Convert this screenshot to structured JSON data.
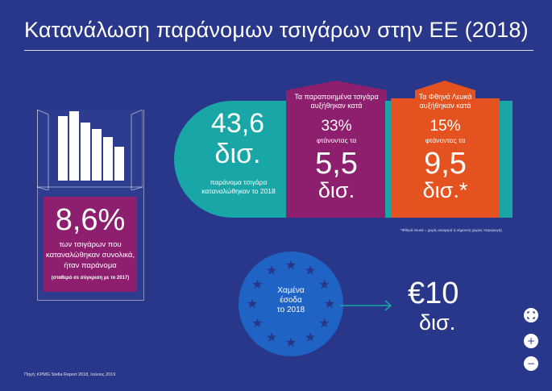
{
  "title": "Κατανάλωση παράνομων τσιγάρων στην ΕΕ (2018)",
  "pack": {
    "big": "8,6%",
    "line1": "των τσιγάρων που",
    "line2": "καταναλώθηκαν συνολικά,",
    "line3": "ήταν παράνομα",
    "note": "(σταθερό σε σύγκριση με το 2017)"
  },
  "illicit": {
    "big1": "43,6",
    "big2": "δισ.",
    "line1": "παράνομα τσιγάρα",
    "line2": "καταναλώθηκαν το 2018"
  },
  "counterfeit": {
    "line1": "Τα παραποιημένα τσιγάρα",
    "line2": "αυξήθηκαν κατά",
    "pct": "33%",
    "reach": "φτάνοντας τα",
    "big": "5,5",
    "unit": "δισ."
  },
  "cheap_whites": {
    "line1": "Τα Φθηνά Λευκά",
    "line2": "αυξήθηκαν κατά",
    "pct": "15%",
    "reach": "φτάνοντας τα",
    "big": "9,5",
    "unit": "δισ.*"
  },
  "footnote": "*Φθηνά Λευκά = χωρίς αναφορά ή σήμανση χώρας παραγωγής",
  "revenue": {
    "line1": "Χαμένα",
    "line2": "έσοδα",
    "line3": "το 2018",
    "big": "€10",
    "unit": "δισ."
  },
  "source": "Πηγή: KPMG Stella Report 2018, Ιούνιος 2019",
  "controls": {
    "fit_icon": "fit-screen-icon",
    "zoom_in": "+",
    "zoom_out": "−"
  },
  "colors": {
    "background": "#28378a",
    "teal": "#18a7a6",
    "purple": "#8e1e6e",
    "orange": "#e4531f",
    "eu_blue": "#1f63c4"
  }
}
